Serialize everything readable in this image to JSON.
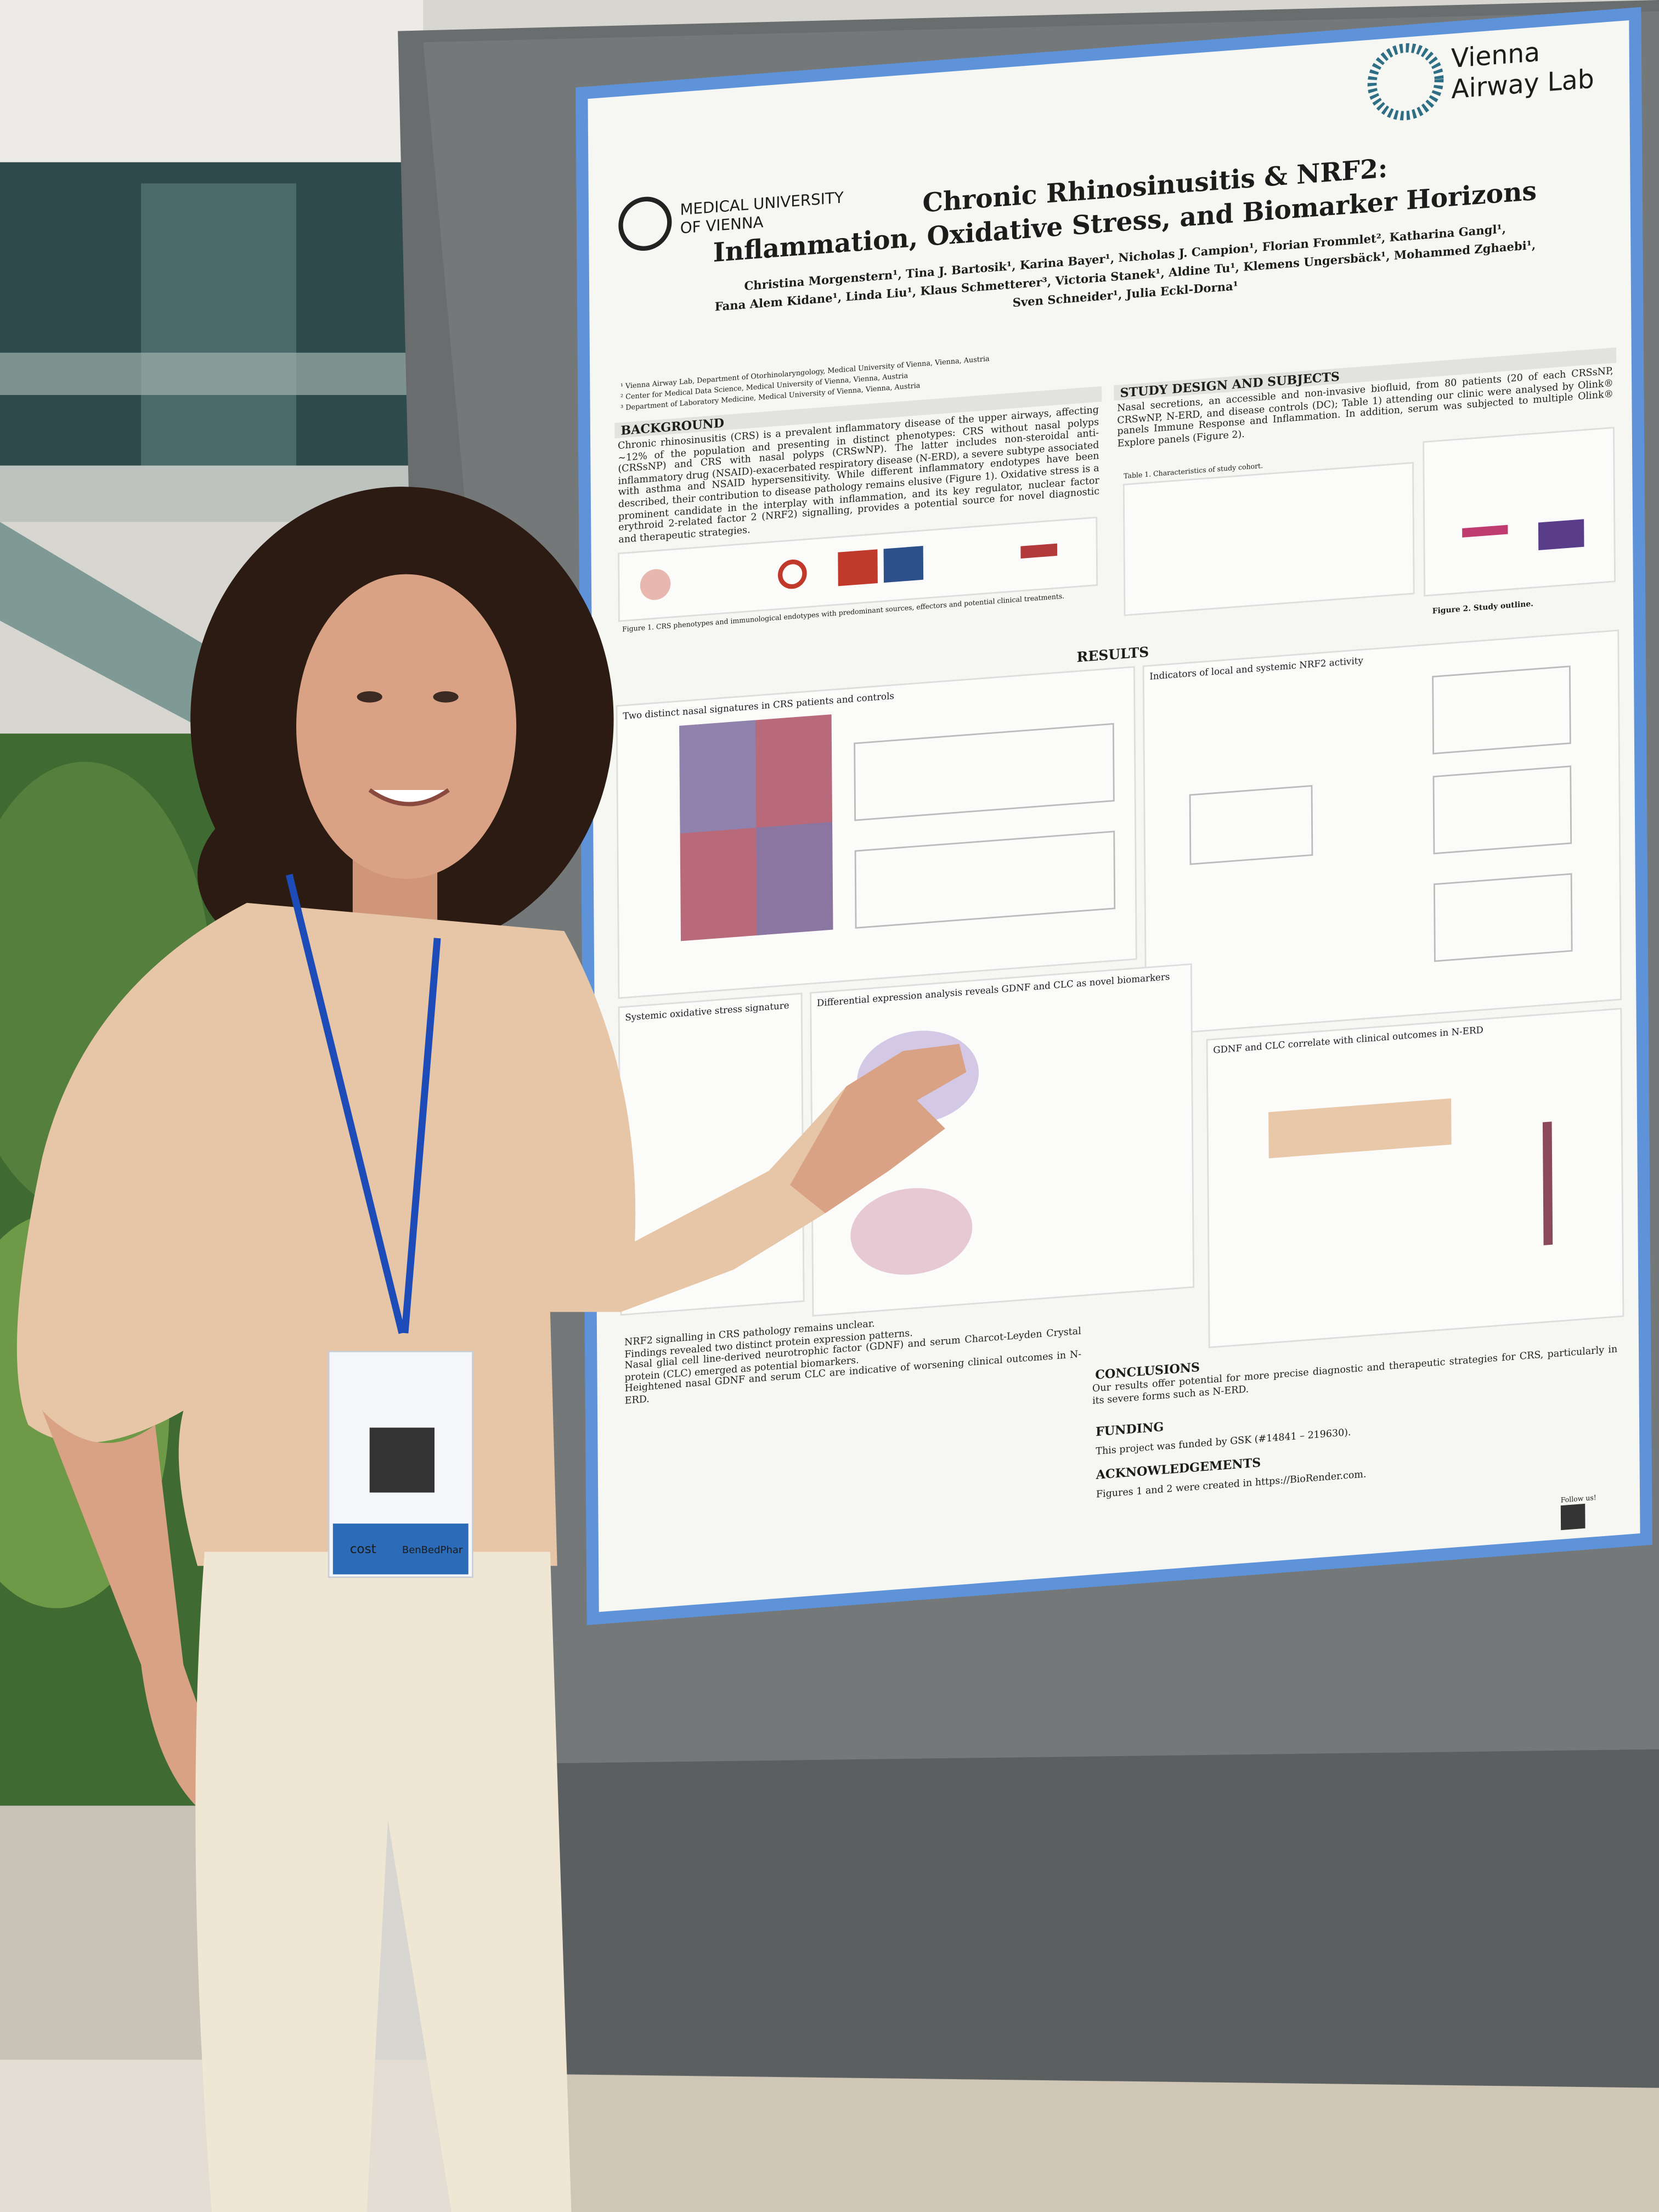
{
  "poster": {
    "lab_name": [
      "Vienna",
      "Airway Lab"
    ],
    "university": [
      "MEDICAL UNIVERSITY",
      "OF VIENNA"
    ],
    "title": [
      "Chronic Rhinosinusitis & NRF2:",
      "Inflammation, Oxidative Stress, and Biomarker Horizons"
    ],
    "authors": [
      "Christina Morgenstern¹, Tina J. Bartosik¹, Karina Bayer¹, Nicholas J. Campion¹, Florian Frommlet², Katharina Gangl¹,",
      "Fana Alem Kidane¹, Linda Liu¹, Klaus Schmetterer³, Victoria Stanek¹, Aldine Tu¹, Klemens Ungersbäck¹, Mohammed Zghaebi¹,",
      "Sven Schneider¹, Julia Eckl-Dorna¹"
    ],
    "affiliations": [
      "¹ Vienna Airway Lab, Department of Otorhinolaryngology, Medical University of Vienna, Vienna, Austria",
      "² Center for Medical Data Science, Medical University of Vienna, Vienna, Austria",
      "³ Department of Laboratory Medicine, Medical University of Vienna, Vienna, Austria"
    ],
    "background": {
      "heading": "BACKGROUND",
      "text": "Chronic rhinosinusitis (CRS) is a prevalent inflammatory disease of the upper airways, affecting ~12% of the population and presenting in distinct phenotypes: CRS without nasal polyps (CRSsNP) and CRS with nasal polyps (CRSwNP). The latter includes non-steroidal anti-inflammatory drug (NSAID)-exacerbated respiratory disease (N-ERD), a severe subtype associated with asthma and NSAID hypersensitivity. While different inflammatory endotypes have been described, their contribution to disease pathology remains elusive (Figure 1). Oxidative stress is a prominent candidate in the interplay with inflammation, and its key regulator, nuclear factor erythroid 2-related factor 2 (NRF2) signalling, provides a potential source for novel diagnostic and therapeutic strategies.",
      "figure_caption": "Figure 1. CRS phenotypes and immunological endotypes with predominant sources, effectors and potential clinical treatments."
    },
    "study_design": {
      "heading": "STUDY DESIGN AND SUBJECTS",
      "text": "Nasal secretions, an accessible and non-invasive biofluid, from 80 patients (20 of each CRSsNP, CRSwNP, N-ERD, and disease controls (DC); Table 1) attending our clinic were analysed by Olink® panels Immune Response and Inflammation. In addition, serum was subjected to multiple Olink® Explore panels (Figure 2).",
      "table_caption": "Table 1. Characteristics of study cohort.",
      "figure_caption": "Figure 2. Study outline."
    },
    "results": {
      "heading": "RESULTS",
      "sections": [
        "Two distinct nasal signatures in CRS patients and controls",
        "Indicators of local and systemic NRF2 activity",
        "Systemic oxidative stress signature",
        "Differential expression analysis reveals GDNF and CLC as novel biomarkers",
        "GDNF and CLC correlate with clinical outcomes in N-ERD"
      ]
    },
    "summary": [
      "NRF2 signalling in CRS pathology remains unclear.",
      "Findings revealed two distinct protein expression patterns.",
      "Nasal glial cell line-derived neurotrophic factor (GDNF) and serum Charcot-Leyden Crystal protein (CLC) emerged as potential biomarkers.",
      "Heightened nasal GDNF and serum CLC are indicative of worsening clinical outcomes in N-ERD."
    ],
    "conclusions": {
      "heading": "CONCLUSIONS",
      "text": "Our results offer potential for more precise diagnostic and therapeutic strategies for CRS, particularly in its severe forms such as N-ERD."
    },
    "funding": {
      "heading": "FUNDING",
      "text": "This project was funded by GSK (#14841 – 219630)."
    },
    "acknowledgements": {
      "heading": "ACKNOWLEDGEMENTS",
      "text": "Figures 1 and 2 were created in https://BioRender.com."
    },
    "follow": "Follow us!"
  },
  "badge": {
    "labels": [
      "cost",
      "BenBedPhar"
    ]
  }
}
